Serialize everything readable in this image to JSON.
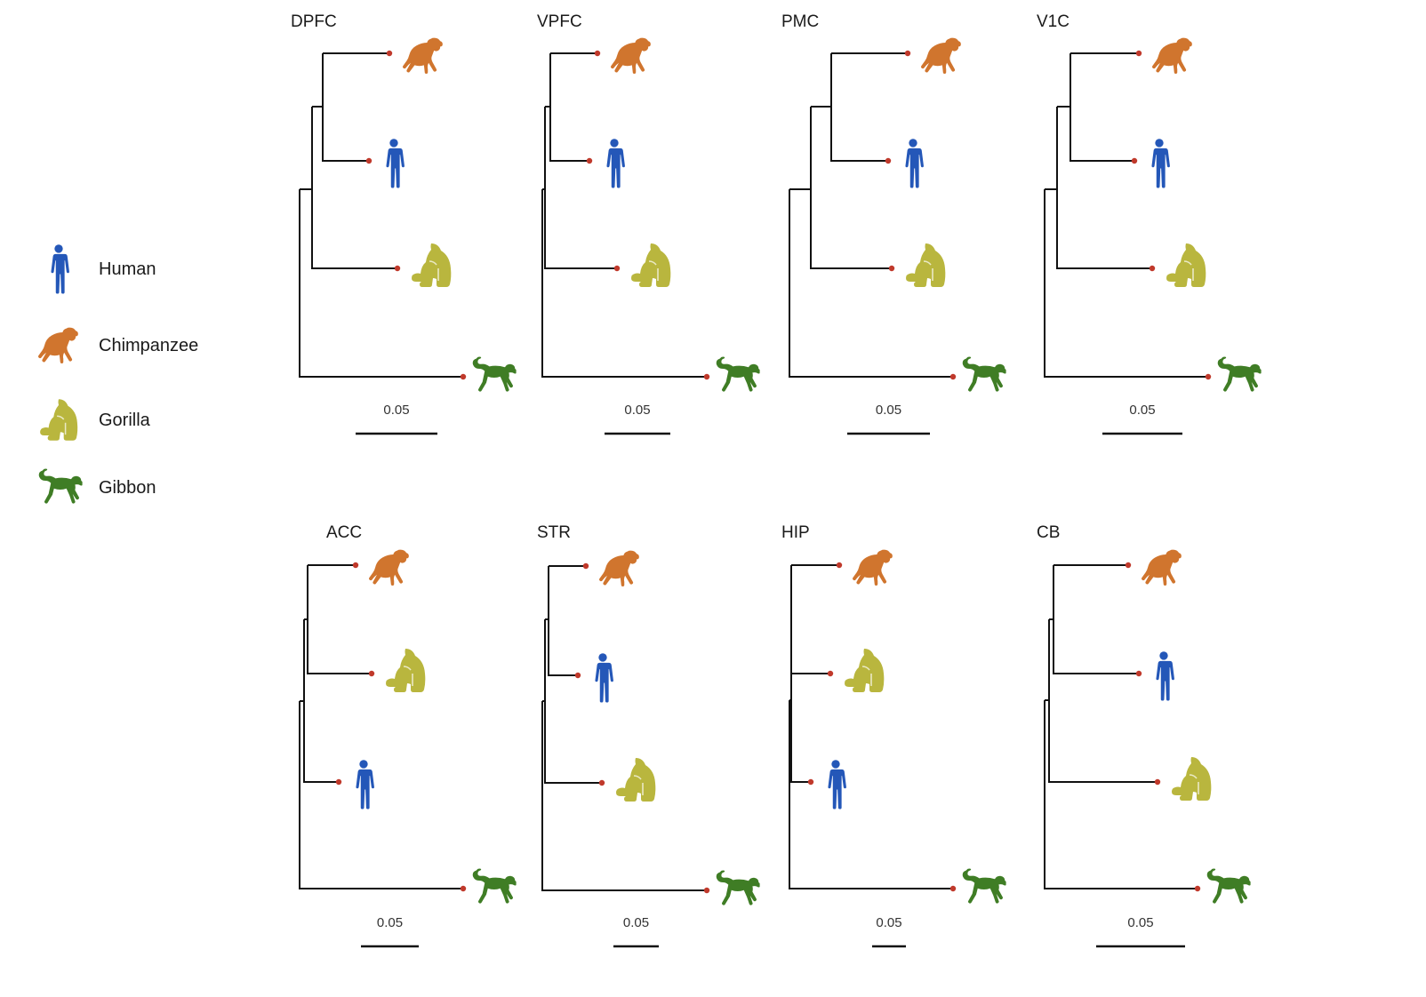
{
  "colors": {
    "human": "#2457b8",
    "chimpanzee": "#d0752e",
    "gorilla": "#b9b63e",
    "gibbon": "#3f7d25",
    "tip_dot": "#c0392b",
    "branch": "#111111"
  },
  "legend": [
    {
      "species": "human",
      "label": "Human",
      "icon": "human-icon"
    },
    {
      "species": "chimpanzee",
      "label": "Chimpanzee",
      "icon": "chimpanzee-icon"
    },
    {
      "species": "gorilla",
      "label": "Gorilla",
      "icon": "gorilla-icon"
    },
    {
      "species": "gibbon",
      "label": "Gibbon",
      "icon": "gibbon-icon"
    }
  ],
  "scale_label": "0.05",
  "panels": [
    {
      "title": "DPFC",
      "topology": "((chimpanzee,human),gorilla),gibbon"
    },
    {
      "title": "VPFC",
      "topology": "((chimpanzee,human),gorilla),gibbon"
    },
    {
      "title": "PMC",
      "topology": "((chimpanzee,human),gorilla),gibbon"
    },
    {
      "title": "V1C",
      "topology": "((chimpanzee,human),gorilla),gibbon"
    },
    {
      "title": "ACC",
      "topology": "((chimpanzee,gorilla),human),gibbon"
    },
    {
      "title": "STR",
      "topology": "((chimpanzee,human),gorilla),gibbon"
    },
    {
      "title": "HIP",
      "topology": "((chimpanzee,gorilla),human),gibbon"
    },
    {
      "title": "CB",
      "topology": "((chimpanzee,human),gorilla),gibbon"
    }
  ]
}
